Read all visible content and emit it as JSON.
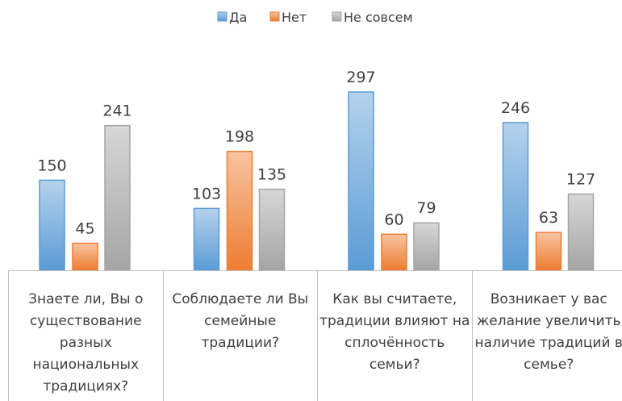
{
  "chart_data": {
    "type": "bar",
    "categories": [
      "Знаете ли, Вы о существование разных национальных традициях?",
      "Соблюдаете ли Вы семейные традиции?",
      "Как вы считаете, традиции влияют на сплочённость семьи?",
      "Возникает у вас желание увеличить наличие традиций в семье?"
    ],
    "series": [
      {
        "name": "Да",
        "color": "#5b9bd5",
        "values": [
          150,
          103,
          297,
          246
        ]
      },
      {
        "name": "Нет",
        "color": "#ed7d31",
        "values": [
          45,
          198,
          60,
          63
        ]
      },
      {
        "name": "Не совсем",
        "color": "#a5a5a5",
        "values": [
          241,
          135,
          79,
          127
        ]
      }
    ],
    "legend": "top"
  }
}
